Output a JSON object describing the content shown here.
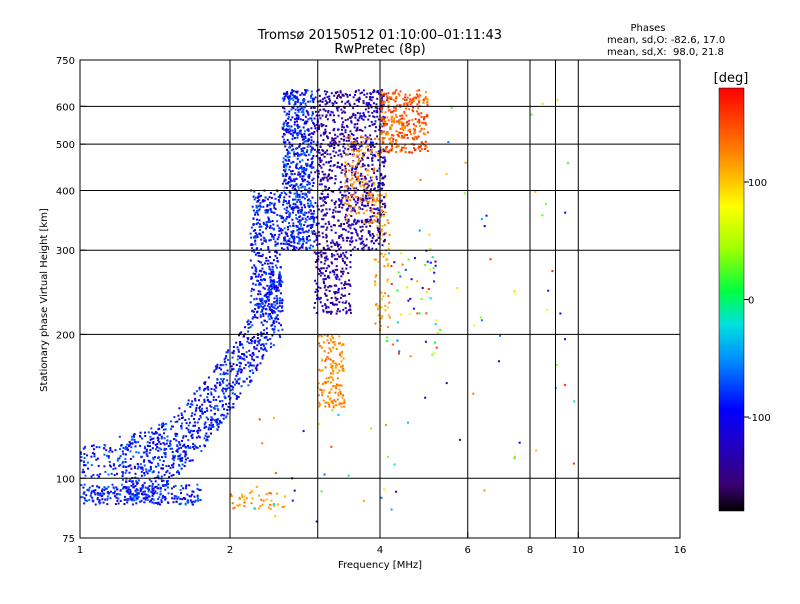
{
  "chart_data": {
    "type": "scatter",
    "title": "Tromsø 20150512 01:10:00–01:11:43",
    "subtitle": "RwPretec (8p)",
    "xlabel": "Frequency [MHz]",
    "ylabel": "Stationary phase Virtual Height [km]",
    "x_scale": "log",
    "y_scale": "log",
    "xlim": [
      1,
      16
    ],
    "ylim": [
      75,
      750
    ],
    "x_ticks": [
      1,
      2,
      4,
      6,
      8,
      10,
      16
    ],
    "x_tick_labels": [
      "1",
      "2",
      "4",
      "6",
      "8",
      "10",
      "16"
    ],
    "x_grid": [
      2,
      3,
      4,
      6,
      8,
      9,
      10
    ],
    "y_ticks": [
      75,
      100,
      200,
      300,
      400,
      500,
      600,
      750
    ],
    "y_tick_labels": [
      "75",
      "100",
      "200",
      "300",
      "400",
      "500",
      "600",
      "750"
    ],
    "y_grid": [
      100,
      200,
      300,
      400,
      500,
      600
    ],
    "grid": true,
    "colorbar": {
      "label": "[deg]",
      "range": [
        -180,
        180
      ],
      "ticks": [
        100,
        0,
        -100
      ],
      "tick_labels": [
        "100",
        "0",
        "-100"
      ]
    },
    "stats": {
      "heading": "Phases",
      "line1": "mean, sd,O: -82.6, 17.0",
      "line2": "mean, sd,X:  98.0, 21.8"
    },
    "clusters": [
      {
        "f": [
          1.0,
          1.75
        ],
        "h": [
          88,
          97
        ],
        "phase": [
          -130,
          -55
        ],
        "n": 260,
        "shape": "floor"
      },
      {
        "f": [
          1.0,
          1.2
        ],
        "h": [
          100,
          118
        ],
        "phase": [
          -120,
          -60
        ],
        "n": 70,
        "shape": "box"
      },
      {
        "f": [
          1.2,
          2.55
        ],
        "h": [
          100,
          220
        ],
        "phase": [
          -120,
          -60
        ],
        "n": 950,
        "shape": "curve"
      },
      {
        "f": [
          2.2,
          2.55
        ],
        "h": [
          220,
          400
        ],
        "phase": [
          -120,
          -65
        ],
        "n": 380,
        "shape": "box"
      },
      {
        "f": [
          2.55,
          2.95
        ],
        "h": [
          300,
          650
        ],
        "phase": [
          -125,
          -55
        ],
        "n": 720,
        "shape": "box"
      },
      {
        "f": [
          2.95,
          3.5
        ],
        "h": [
          220,
          650
        ],
        "phase": [
          -160,
          -105
        ],
        "n": 650,
        "shape": "box"
      },
      {
        "f": [
          3.5,
          4.1
        ],
        "h": [
          300,
          650
        ],
        "phase": [
          -160,
          -100
        ],
        "n": 480,
        "shape": "box"
      },
      {
        "f": [
          3.0,
          3.4
        ],
        "h": [
          140,
          200
        ],
        "phase": [
          105,
          140
        ],
        "n": 150,
        "shape": "box"
      },
      {
        "f": [
          3.4,
          4.0
        ],
        "h": [
          340,
          520
        ],
        "phase": [
          105,
          140
        ],
        "n": 150,
        "shape": "box"
      },
      {
        "f": [
          4.0,
          5.0
        ],
        "h": [
          480,
          650
        ],
        "phase": [
          115,
          170
        ],
        "n": 330,
        "shape": "box"
      },
      {
        "f": [
          3.9,
          4.2
        ],
        "h": [
          200,
          400
        ],
        "phase": [
          95,
          130
        ],
        "n": 80,
        "shape": "box"
      },
      {
        "f": [
          4.1,
          5.3
        ],
        "h": [
          180,
          300
        ],
        "phase": [
          -140,
          170
        ],
        "n": 55,
        "shape": "box"
      },
      {
        "f": [
          2.0,
          2.6
        ],
        "h": [
          86,
          94
        ],
        "phase": [
          100,
          140
        ],
        "n": 45,
        "shape": "box"
      },
      {
        "f": [
          4.8,
          10.0
        ],
        "h": [
          90,
          620
        ],
        "phase": [
          -160,
          170
        ],
        "n": 50,
        "shape": "box"
      },
      {
        "f": [
          2.2,
          4.6
        ],
        "h": [
          80,
          140
        ],
        "phase": [
          -160,
          170
        ],
        "n": 30,
        "shape": "box"
      }
    ]
  }
}
